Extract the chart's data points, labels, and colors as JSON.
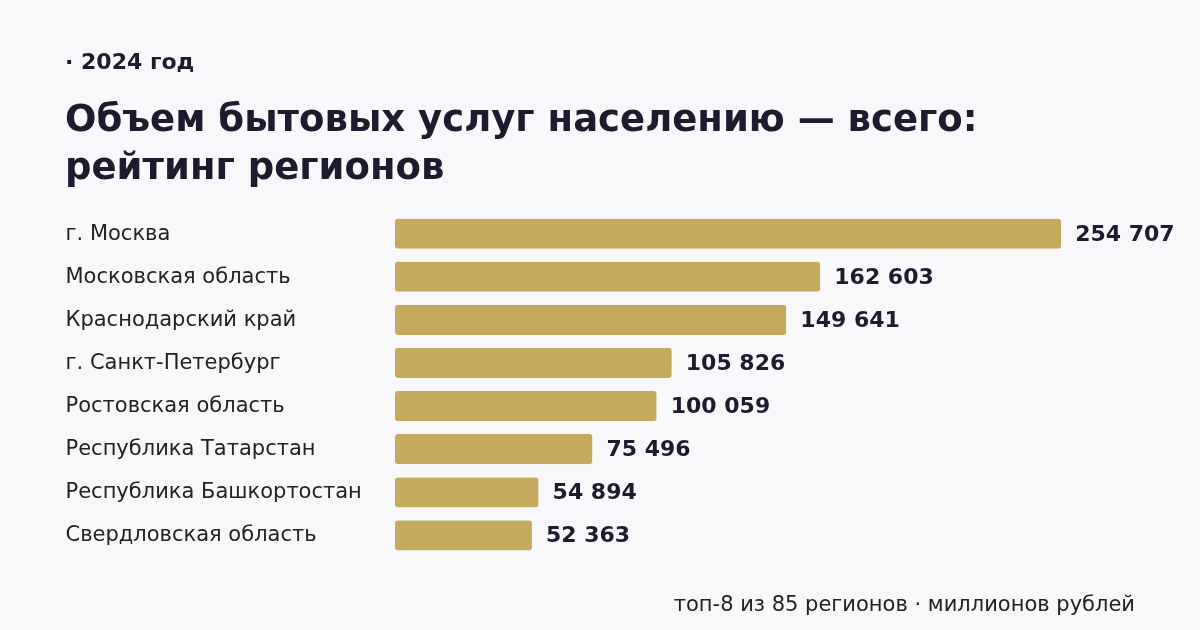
{
  "chart_data": {
    "type": "bar",
    "orientation": "horizontal",
    "subtitle": "· 2024 год",
    "title": "Объем бытовых услуг населению — всего: рейтинг регионов",
    "categories": [
      "г. Москва",
      "Московская область",
      "Краснодарский край",
      "г. Санкт-Петербург",
      "Ростовская область",
      "Республика Татарстан",
      "Республика Башкортостан",
      "Свердловская область"
    ],
    "values": [
      254707,
      162603,
      149641,
      105826,
      100059,
      75496,
      54894,
      52363
    ],
    "value_labels": [
      "254 707",
      "162 603",
      "149 641",
      "105 826",
      "100 059",
      "75 496",
      "54 894",
      "52 363"
    ],
    "color": "#c5a95c",
    "tick_labels": "y",
    "annotations": [
      "топ-8 из 85 регионов · миллионов рублей"
    ]
  }
}
